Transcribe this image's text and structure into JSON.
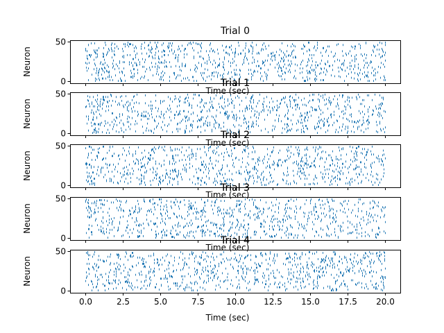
{
  "chart_data": {
    "type": "scatter",
    "subtype": "spike-raster",
    "panels": [
      {
        "title": "Trial 0",
        "xlabel": "Time (sec)",
        "ylabel": "Neuron"
      },
      {
        "title": "Trial 1",
        "xlabel": "Time (sec)",
        "ylabel": "Neuron"
      },
      {
        "title": "Trial 2",
        "xlabel": "Time (sec)",
        "ylabel": "Neuron"
      },
      {
        "title": "Trial 3",
        "xlabel": "Time (sec)",
        "ylabel": "Neuron"
      },
      {
        "title": "Trial 4",
        "xlabel": "Time (sec)",
        "ylabel": "Neuron"
      }
    ],
    "xlim": [
      -1.0,
      21.0
    ],
    "ylim": [
      -3,
      52
    ],
    "xticks": [
      0.0,
      2.5,
      5.0,
      7.5,
      10.0,
      12.5,
      15.0,
      17.5,
      20.0
    ],
    "xtick_labels": [
      "0.0",
      "2.5",
      "5.0",
      "7.5",
      "10.0",
      "12.5",
      "15.0",
      "17.5",
      "20.0"
    ],
    "yticks": [
      0,
      50
    ],
    "ytick_labels": [
      "0",
      "50"
    ],
    "neurons": 50,
    "duration_sec": 20.0,
    "spikes_per_trial": 900,
    "spike_color": "#1f77b4"
  }
}
